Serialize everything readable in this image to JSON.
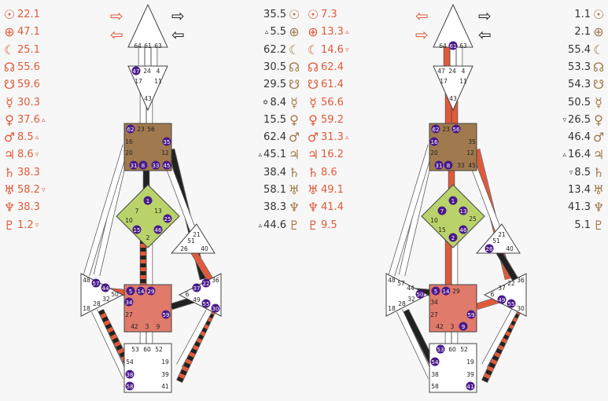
{
  "colors": {
    "design_red": "#e05a3a",
    "personality_black": "#222222",
    "head_center": "#ffffff",
    "ajna_center": "#ffffff",
    "throat_center": "#a07a4e",
    "g_center": "#b9d36a",
    "heart_center": "#ffffff",
    "sacral_center": "#e07a6a",
    "spleen_center": "#ffffff",
    "solar_plexus_center": "#ffffff",
    "root_center": "#ffffff",
    "activated_gate": "#4a1a8a"
  },
  "planet_icons": [
    "sun-icon",
    "earth-icon",
    "moon-icon",
    "north-node-icon",
    "south-node-icon",
    "mercury-icon",
    "venus-icon",
    "mars-icon",
    "jupiter-icon",
    "saturn-icon",
    "uranus-icon",
    "neptune-icon",
    "pluto-icon"
  ],
  "planet_glyphs": [
    "☉",
    "⊕",
    "☾",
    "☊",
    "☋",
    "☿",
    "♀",
    "♂",
    "♃",
    "♄",
    "♅",
    "♆",
    "♇"
  ],
  "chart1": {
    "design": [
      {
        "v": "22.1",
        "m": ""
      },
      {
        "v": "47.1",
        "m": ""
      },
      {
        "v": "25.1",
        "m": ""
      },
      {
        "v": "55.6",
        "m": ""
      },
      {
        "v": "59.6",
        "m": ""
      },
      {
        "v": "30.3",
        "m": ""
      },
      {
        "v": "37.6",
        "m": "▵"
      },
      {
        "v": "8.5",
        "m": "▵"
      },
      {
        "v": "8.6",
        "m": "▿"
      },
      {
        "v": "38.3",
        "m": ""
      },
      {
        "v": "58.2",
        "m": "▿"
      },
      {
        "v": "38.3",
        "m": ""
      },
      {
        "v": "1.2",
        "m": "▿"
      }
    ],
    "personality": [
      {
        "v": "35.5",
        "m": ""
      },
      {
        "v": "5.5",
        "m": "▵"
      },
      {
        "v": "62.2",
        "m": ""
      },
      {
        "v": "30.5",
        "m": ""
      },
      {
        "v": "29.5",
        "m": ""
      },
      {
        "v": "8.4",
        "m": "✡"
      },
      {
        "v": "15.5",
        "m": ""
      },
      {
        "v": "62.4",
        "m": ""
      },
      {
        "v": "45.1",
        "m": "▵"
      },
      {
        "v": "38.4",
        "m": ""
      },
      {
        "v": "58.1",
        "m": ""
      },
      {
        "v": "38.3",
        "m": ""
      },
      {
        "v": "44.6",
        "m": "▵"
      }
    ],
    "active_gates": [
      "47",
      "62",
      "35",
      "45",
      "31",
      "8",
      "33",
      "1",
      "15",
      "25",
      "46",
      "5",
      "14",
      "29",
      "59",
      "34",
      "57",
      "44",
      "37",
      "22",
      "55",
      "30",
      "38",
      "58"
    ]
  },
  "chart2": {
    "design": [
      {
        "v": "7.3",
        "m": ""
      },
      {
        "v": "13.3",
        "m": "▵"
      },
      {
        "v": "14.6",
        "m": "▿"
      },
      {
        "v": "62.4",
        "m": ""
      },
      {
        "v": "61.4",
        "m": ""
      },
      {
        "v": "56.6",
        "m": ""
      },
      {
        "v": "59.2",
        "m": ""
      },
      {
        "v": "31.3",
        "m": "▵"
      },
      {
        "v": "16.2",
        "m": ""
      },
      {
        "v": "8.6",
        "m": ""
      },
      {
        "v": "49.1",
        "m": ""
      },
      {
        "v": "41.4",
        "m": ""
      },
      {
        "v": "9.5",
        "m": ""
      }
    ],
    "personality": [
      {
        "v": "1.1",
        "m": ""
      },
      {
        "v": "2.1",
        "m": ""
      },
      {
        "v": "55.4",
        "m": ""
      },
      {
        "v": "53.3",
        "m": ""
      },
      {
        "v": "54.3",
        "m": ""
      },
      {
        "v": "50.5",
        "m": ""
      },
      {
        "v": "26.5",
        "m": "▿"
      },
      {
        "v": "46.4",
        "m": ""
      },
      {
        "v": "16.4",
        "m": "▵"
      },
      {
        "v": "8.5",
        "m": "▿"
      },
      {
        "v": "13.4",
        "m": ""
      },
      {
        "v": "41.3",
        "m": ""
      },
      {
        "v": "5.1",
        "m": ""
      }
    ],
    "active_gates": [
      "61",
      "62",
      "56",
      "16",
      "31",
      "8",
      "7",
      "13",
      "1",
      "2",
      "46",
      "26",
      "5",
      "14",
      "59",
      "9",
      "49",
      "55",
      "50",
      "53",
      "54",
      "41"
    ]
  },
  "gate_labels": {
    "head": [
      "64",
      "61",
      "63"
    ],
    "ajna": [
      "47",
      "24",
      "4",
      "17",
      "11",
      "43"
    ],
    "throat": [
      "62",
      "23",
      "56",
      "16",
      "35",
      "20",
      "12",
      "31",
      "8",
      "33",
      "45"
    ],
    "g": [
      "1",
      "7",
      "13",
      "10",
      "25",
      "15",
      "46",
      "2"
    ],
    "heart": [
      "21",
      "51",
      "26",
      "40"
    ],
    "sacral": [
      "5",
      "14",
      "29",
      "34",
      "27",
      "59",
      "42",
      "3",
      "9"
    ],
    "spleen": [
      "48",
      "57",
      "44",
      "50",
      "18",
      "28",
      "32"
    ],
    "solar": [
      "36",
      "22",
      "37",
      "6",
      "49",
      "55",
      "30"
    ],
    "root": [
      "53",
      "60",
      "52",
      "54",
      "19",
      "38",
      "39",
      "58",
      "41"
    ]
  }
}
